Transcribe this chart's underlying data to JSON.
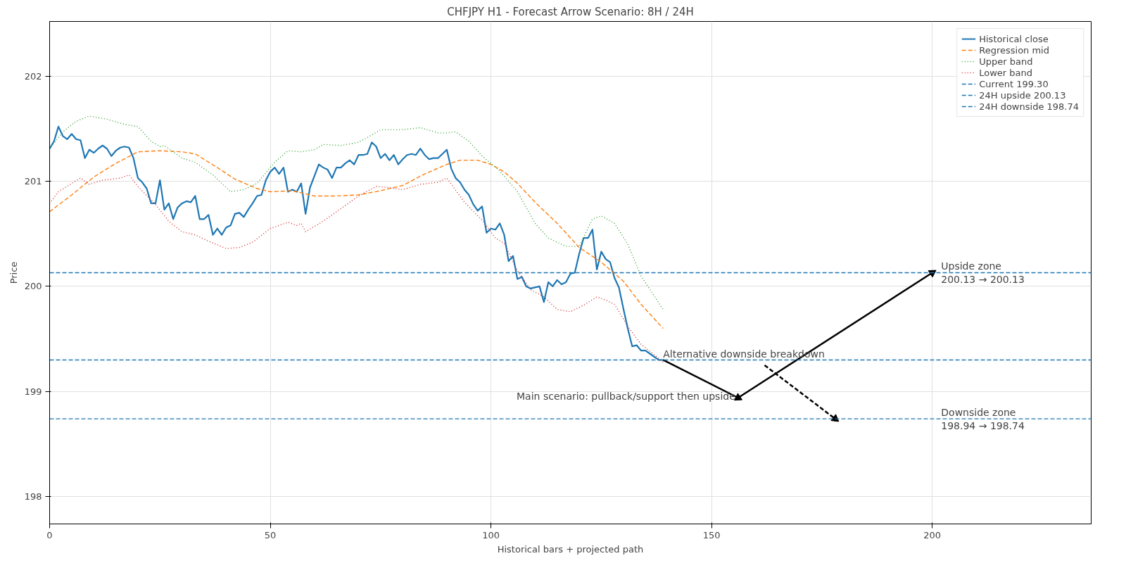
{
  "chart_data": {
    "type": "line",
    "title": "CHFJPY H1 - Forecast Arrow Scenario: 8H / 24H",
    "xlabel": "Historical bars + projected path",
    "ylabel": "Price",
    "xlim": [
      0,
      236
    ],
    "ylim": [
      197.74,
      202.52
    ],
    "xticks": [
      0,
      50,
      100,
      150,
      200
    ],
    "yticks": [
      198,
      199,
      200,
      201,
      202
    ],
    "grid": true,
    "legend": "top right",
    "series": [
      {
        "name": "Historical close",
        "color": "#1f77b4",
        "line_style": "solid",
        "x": [
          0,
          1,
          2,
          3,
          4,
          5,
          6,
          7,
          8,
          9,
          10,
          11,
          12,
          13,
          14,
          15,
          16,
          17,
          18,
          19,
          20,
          21,
          22,
          23,
          24,
          25,
          26,
          27,
          28,
          29,
          30,
          31,
          32,
          33,
          34,
          35,
          36,
          37,
          38,
          39,
          40,
          41,
          42,
          43,
          44,
          45,
          46,
          47,
          48,
          49,
          50,
          51,
          52,
          53,
          54,
          55,
          56,
          57,
          58,
          59,
          60,
          61,
          62,
          63,
          64,
          65,
          66,
          67,
          68,
          69,
          70,
          71,
          72,
          73,
          74,
          75,
          76,
          77,
          78,
          79,
          80,
          81,
          82,
          83,
          84,
          85,
          86,
          87,
          88,
          89,
          90,
          91,
          92,
          93,
          94,
          95,
          96,
          97,
          98,
          99,
          100,
          101,
          102,
          103,
          104,
          105,
          106,
          107,
          108,
          109,
          110,
          111,
          112,
          113,
          114,
          115,
          116,
          117,
          118,
          119,
          120,
          121,
          122,
          123,
          124,
          125,
          126,
          127,
          128,
          129,
          130,
          131,
          132,
          133,
          134,
          135,
          136,
          137,
          138,
          139
        ],
        "values": [
          201.31,
          201.38,
          201.52,
          201.43,
          201.4,
          201.45,
          201.4,
          201.39,
          201.22,
          201.3,
          201.27,
          201.31,
          201.34,
          201.31,
          201.24,
          201.29,
          201.32,
          201.33,
          201.32,
          201.22,
          201.03,
          200.99,
          200.93,
          200.79,
          200.79,
          201.01,
          200.73,
          200.79,
          200.64,
          200.75,
          200.79,
          200.81,
          200.8,
          200.86,
          200.64,
          200.64,
          200.68,
          200.49,
          200.55,
          200.49,
          200.56,
          200.58,
          200.69,
          200.7,
          200.66,
          200.73,
          200.79,
          200.86,
          200.87,
          201.01,
          201.09,
          201.13,
          201.07,
          201.13,
          200.9,
          200.92,
          200.9,
          200.98,
          200.69,
          200.94,
          201.05,
          201.16,
          201.13,
          201.11,
          201.03,
          201.13,
          201.13,
          201.17,
          201.2,
          201.16,
          201.25,
          201.25,
          201.26,
          201.37,
          201.33,
          201.22,
          201.26,
          201.2,
          201.25,
          201.16,
          201.21,
          201.25,
          201.26,
          201.25,
          201.31,
          201.25,
          201.21,
          201.22,
          201.22,
          201.26,
          201.3,
          201.12,
          201.03,
          200.99,
          200.92,
          200.87,
          200.78,
          200.72,
          200.76,
          200.51,
          200.55,
          200.54,
          200.6,
          200.49,
          200.24,
          200.29,
          200.07,
          200.09,
          200.0,
          199.98,
          199.99,
          200.0,
          199.85,
          200.04,
          200.0,
          200.06,
          200.02,
          200.04,
          200.12,
          200.13,
          200.31,
          200.46,
          200.46,
          200.54,
          200.16,
          200.33,
          200.26,
          200.23,
          200.08,
          199.99,
          199.79,
          199.6,
          199.43,
          199.44,
          199.39,
          199.39,
          199.36,
          199.33,
          199.3,
          199.3
        ]
      },
      {
        "name": "Regression mid",
        "color": "#ff7f0e",
        "line_style": "dashed",
        "x": [
          0,
          5,
          10,
          15,
          20,
          25,
          30,
          33,
          38,
          42,
          47,
          50,
          55,
          60,
          65,
          70,
          75,
          80,
          85,
          90,
          93,
          97,
          100,
          103,
          106,
          110,
          115,
          120,
          125,
          130,
          134,
          139
        ],
        "values": [
          200.71,
          200.87,
          201.04,
          201.17,
          201.28,
          201.29,
          201.28,
          201.26,
          201.13,
          201.02,
          200.93,
          200.9,
          200.91,
          200.86,
          200.86,
          200.87,
          200.91,
          200.96,
          201.07,
          201.16,
          201.2,
          201.2,
          201.16,
          201.09,
          200.98,
          200.8,
          200.6,
          200.37,
          200.23,
          200.05,
          199.83,
          199.6
        ]
      },
      {
        "name": "Upper band",
        "color": "#2ca02c",
        "line_style": "dotted",
        "x": [
          0,
          3,
          6,
          9,
          13,
          17,
          20,
          23,
          25,
          26,
          30,
          33,
          37,
          41,
          44,
          47,
          51,
          54,
          57,
          60,
          62,
          66,
          70,
          73,
          75,
          80,
          84,
          88,
          90,
          92,
          95,
          98,
          102,
          106,
          110,
          113,
          117,
          120,
          123,
          125,
          128,
          131,
          134,
          139
        ],
        "values": [
          201.31,
          201.47,
          201.57,
          201.62,
          201.59,
          201.54,
          201.52,
          201.38,
          201.33,
          201.34,
          201.22,
          201.18,
          201.06,
          200.9,
          200.92,
          200.98,
          201.18,
          201.29,
          201.28,
          201.3,
          201.35,
          201.34,
          201.37,
          201.44,
          201.49,
          201.49,
          201.51,
          201.46,
          201.46,
          201.47,
          201.38,
          201.24,
          201.1,
          200.9,
          200.6,
          200.46,
          200.38,
          200.38,
          200.64,
          200.67,
          200.6,
          200.4,
          200.1,
          199.78
        ]
      },
      {
        "name": "Lower band",
        "color": "#d62728",
        "line_style": "dotted",
        "x": [
          0,
          2,
          5,
          7,
          9,
          12,
          16,
          18,
          20,
          24,
          27,
          30,
          33,
          36,
          40,
          43,
          46,
          50,
          54,
          56,
          57,
          58,
          62,
          66,
          70,
          74,
          77,
          80,
          84,
          88,
          90,
          94,
          98,
          101,
          103,
          106,
          109,
          112,
          115,
          118,
          121,
          124,
          126,
          128,
          131,
          134,
          137,
          139
        ],
        "values": [
          200.79,
          200.9,
          200.98,
          201.03,
          200.97,
          201.01,
          201.03,
          201.06,
          200.95,
          200.78,
          200.62,
          200.52,
          200.49,
          200.43,
          200.36,
          200.37,
          200.42,
          200.55,
          200.61,
          200.58,
          200.6,
          200.52,
          200.62,
          200.74,
          200.86,
          200.95,
          200.94,
          200.92,
          200.97,
          200.99,
          201.03,
          200.8,
          200.63,
          200.46,
          200.41,
          200.15,
          199.97,
          199.9,
          199.78,
          199.76,
          199.82,
          199.9,
          199.87,
          199.83,
          199.62,
          199.45,
          199.35,
          199.28
        ]
      },
      {
        "color": "#000000",
        "line_style": "solid",
        "x": [
          139,
          156
        ],
        "values": [
          199.3,
          198.94
        ]
      },
      {
        "color": "#000000",
        "line_style": "solid",
        "x": [
          156,
          200
        ],
        "values": [
          198.94,
          200.13
        ]
      },
      {
        "color": "#000000",
        "line_style": "dashed",
        "x": [
          162,
          178
        ],
        "values": [
          199.25,
          198.74
        ]
      }
    ],
    "ref_lines": [
      {
        "axis": "y",
        "value": 199.3,
        "label": "Current 199.30",
        "color": "#1f77b4",
        "line_style": "dashed"
      },
      {
        "axis": "y",
        "value": 200.13,
        "label": "24H upside 200.13",
        "color": "#1f77b4",
        "line_style": "dashed"
      },
      {
        "axis": "y",
        "value": 198.74,
        "label": "24H downside 198.74",
        "color": "#1f77b4",
        "line_style": "dashed"
      }
    ],
    "annotations": [
      {
        "text": "Main scenario: pullback/support then upside",
        "x": 156,
        "y": 198.94
      },
      {
        "text": "Alternative downside breakdown",
        "x": 139,
        "y": 199.3
      },
      {
        "text": "Upside zone\n200.13 → 200.13",
        "x": 202,
        "y": 200.13
      },
      {
        "text": "Downside zone\n198.94 → 198.74",
        "x": 202,
        "y": 198.74
      }
    ]
  }
}
